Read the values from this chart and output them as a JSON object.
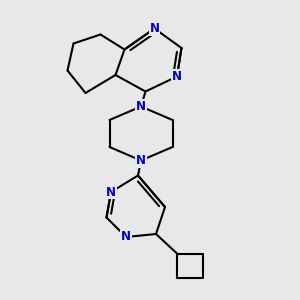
{
  "bg_color": "#e8e8e8",
  "bond_color": "#000000",
  "atom_color": "#0000cc",
  "atom_bg": "#e8e8e8",
  "line_width": 1.5,
  "font_size": 8.5,
  "font_weight": "bold",
  "xlim": [
    0,
    10
  ],
  "ylim": [
    0,
    10
  ]
}
